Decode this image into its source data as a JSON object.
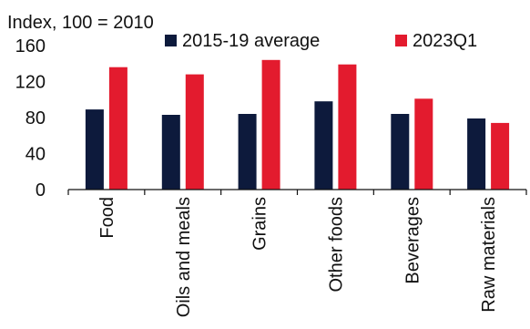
{
  "chart_data": {
    "type": "bar",
    "ylabel": "Index, 100 = 2010",
    "ylim": [
      0,
      160
    ],
    "yticks": [
      0,
      40,
      80,
      120,
      160
    ],
    "grid": false,
    "legend_position": "top",
    "categories": [
      "Food",
      "Oils and meals",
      "Grains",
      "Other foods",
      "Beverages",
      "Raw materials"
    ],
    "series": [
      {
        "name": "2015-19 average",
        "color": "#0d1a3c",
        "values": [
          89,
          83,
          84,
          98,
          84,
          79
        ]
      },
      {
        "name": "2023Q1",
        "color": "#e31b2e",
        "values": [
          136,
          128,
          144,
          139,
          101,
          74
        ]
      }
    ]
  }
}
